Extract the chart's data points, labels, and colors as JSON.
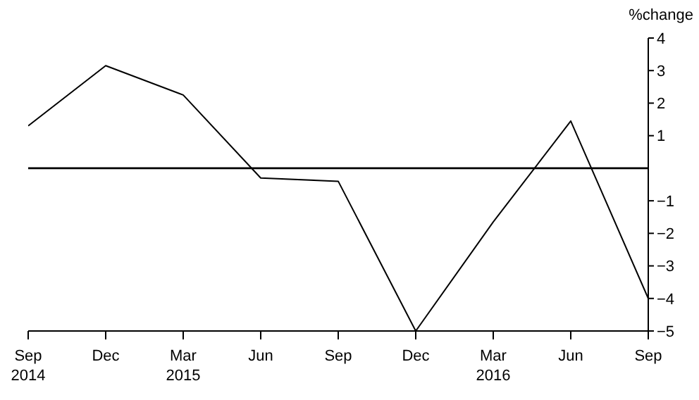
{
  "chart_data": {
    "type": "line",
    "ylabel": "%change",
    "categories": [
      "Sep\n2014",
      "Dec",
      "Mar\n2015",
      "Jun",
      "Sep",
      "Dec",
      "Mar\n2016",
      "Jun",
      "Sep"
    ],
    "series": [
      {
        "color": "#000000",
        "values": [
          1.3,
          3.15,
          2.25,
          -0.3,
          -0.4,
          -5,
          -1.65,
          1.45,
          -4
        ]
      }
    ],
    "ylim": [
      -5,
      4
    ],
    "yticks": [
      4,
      3,
      2,
      1,
      -1,
      -2,
      -3,
      -4,
      -5
    ],
    "ref_lines": [
      {
        "axis": "y",
        "value": 0,
        "color": "#000000"
      }
    ],
    "grid": false,
    "marker": "none",
    "line_style": "solid"
  }
}
